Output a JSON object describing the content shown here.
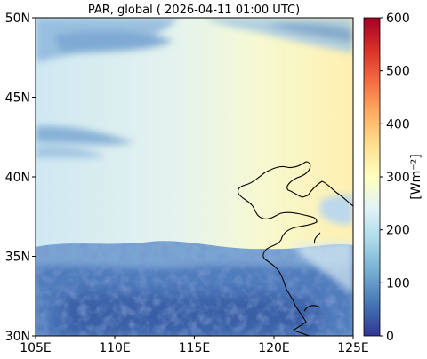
{
  "map": {
    "title": "PAR, global ( 2026-04-11 01:00 UTC)",
    "x_ticks": [
      "105E",
      "110E",
      "115E",
      "120E",
      "125E"
    ],
    "y_ticks": [
      "30N",
      "35N",
      "40N",
      "45N",
      "50N"
    ],
    "lon_range": [
      105,
      125
    ],
    "lat_range": [
      30,
      50
    ]
  },
  "colorbar": {
    "label": "[Wm⁻²]",
    "ticks": [
      "0",
      "100",
      "200",
      "300",
      "400",
      "500",
      "600"
    ],
    "range": [
      0,
      600
    ],
    "colormap": "RdYlBu_r",
    "colors": [
      "#313695",
      "#4575b4",
      "#74add1",
      "#abd9e9",
      "#e0f3f8",
      "#ffffbf",
      "#fee090",
      "#fdae61",
      "#f46d43",
      "#d73027",
      "#a50026"
    ]
  }
}
